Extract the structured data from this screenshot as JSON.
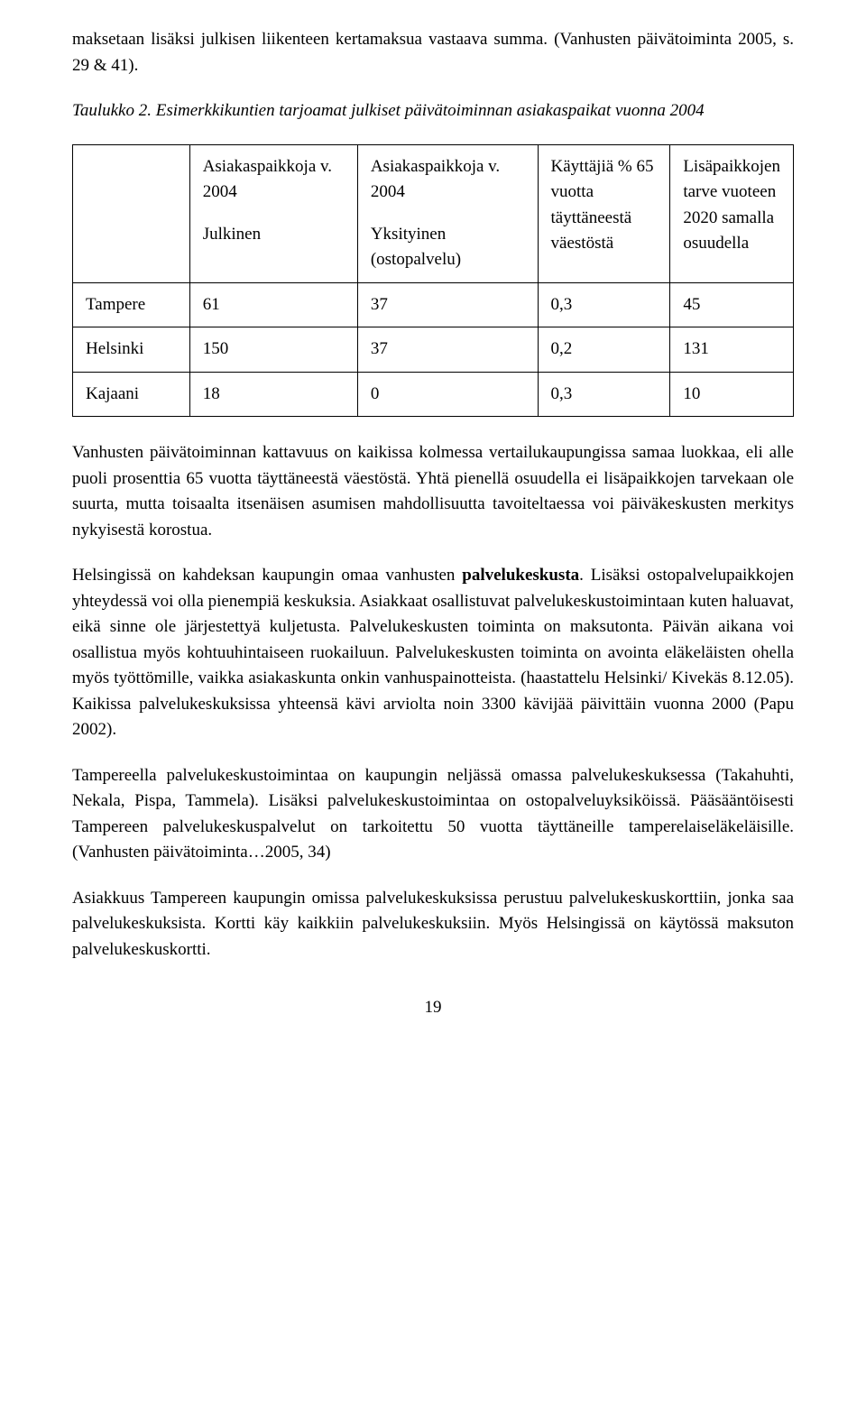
{
  "intro_para": "maksetaan lisäksi julkisen liikenteen kertamaksua vastaava summa. (Vanhusten päivätoiminta 2005, s. 29 & 41).",
  "table_caption": "Taulukko 2. Esimerkkikuntien tarjoamat julkiset päivätoiminnan asiakaspaikat vuonna 2004",
  "headers": {
    "h1_line1": "Asiakaspaikkoja v. 2004",
    "h1_line2": "Julkinen",
    "h2_line1": "Asiakaspaikkoja v. 2004",
    "h2_line2": "Yksityinen (ostopalvelu)",
    "h3": "Käyttäjiä % 65 vuotta täyttäneestä väestöstä",
    "h4": "Lisäpaikkojen tarve vuoteen 2020 samalla osuudella"
  },
  "rows": [
    {
      "label": "Tampere",
      "a": "61",
      "b": "37",
      "c": "0,3",
      "d": "45"
    },
    {
      "label": "Helsinki",
      "a": "150",
      "b": "37",
      "c": "0,2",
      "d": "131"
    },
    {
      "label": "Kajaani",
      "a": "18",
      "b": "0",
      "c": "0,3",
      "d": "10"
    }
  ],
  "p1": "Vanhusten päivätoiminnan kattavuus on kaikissa kolmessa vertailukaupungissa samaa luokkaa, eli alle puoli prosenttia 65 vuotta täyttäneestä väestöstä. Yhtä pienellä osuudella ei lisäpaikkojen tarvekaan ole suurta, mutta toisaalta itsenäisen asumisen mahdollisuutta tavoiteltaessa voi päiväkeskusten merkitys nykyisestä korostua.",
  "p2_a": "Helsingissä on kahdeksan kaupungin omaa vanhusten ",
  "p2_bold": "palvelukeskusta",
  "p2_b": ". Lisäksi ostopalvelupaikkojen yhteydessä voi olla pienempiä keskuksia. Asiakkaat osallistuvat palvelukeskustoimintaan kuten haluavat, eikä sinne ole järjestettyä kuljetusta. Palvelukeskusten toiminta on maksutonta. Päivän aikana voi osallistua myös kohtuuhintaiseen ruokailuun. Palvelukeskusten toiminta on avointa eläkeläisten ohella myös työttömille, vaikka asiakaskunta onkin vanhuspainotteista. (haastattelu Helsinki/ Kivekäs 8.12.05). Kaikissa palvelukeskuksissa yhteensä kävi arviolta noin 3300 kävijää päivittäin vuonna 2000 (Papu 2002).",
  "p3": "Tampereella palvelukeskustoimintaa on kaupungin neljässä omassa palvelukeskuksessa (Takahuhti, Nekala, Pispa, Tammela). Lisäksi palvelukeskustoimintaa on ostopalveluyksiköissä. Pääsääntöisesti Tampereen palvelukeskuspalvelut on tarkoitettu 50 vuotta täyttäneille tamperelaiseläkeläisille. (Vanhusten päivätoiminta…2005, 34)",
  "p4": "Asiakkuus Tampereen kaupungin omissa palvelukeskuksissa perustuu palvelukeskuskorttiin, jonka saa palvelukeskuksista. Kortti käy kaikkiin palvelukeskuksiin. Myös Helsingissä on käytössä maksuton palvelukeskuskortti.",
  "page_number": "19"
}
